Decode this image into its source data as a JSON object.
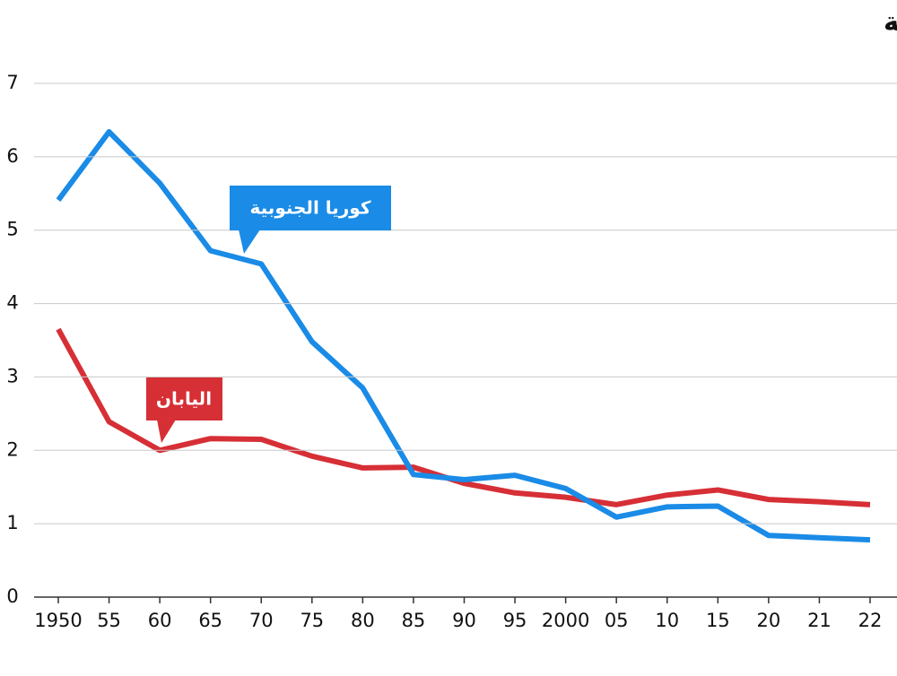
{
  "chart_data": {
    "type": "line",
    "title": "إجمالي معدل المواليد في اليابان وكوريا الجنوبية",
    "categories": [
      "1950",
      "55",
      "60",
      "65",
      "70",
      "75",
      "80",
      "85",
      "90",
      "95",
      "2000",
      "05",
      "10",
      "15",
      "20",
      "21",
      "22"
    ],
    "series": [
      {
        "name": "كوريا الجنوبية",
        "color": "#1a8be6",
        "values": [
          5.41,
          6.34,
          5.64,
          4.72,
          4.54,
          3.48,
          2.85,
          1.67,
          1.6,
          1.66,
          1.48,
          1.09,
          1.23,
          1.24,
          0.84,
          0.81,
          0.78
        ]
      },
      {
        "name": "اليابان",
        "color": "#d62f36",
        "values": [
          3.65,
          2.39,
          2.0,
          2.16,
          2.15,
          1.92,
          1.76,
          1.77,
          1.55,
          1.42,
          1.36,
          1.26,
          1.39,
          1.46,
          1.33,
          1.3,
          1.26
        ]
      }
    ],
    "ylim": [
      0,
      7
    ],
    "yticks": [
      0,
      1,
      2,
      3,
      4,
      5,
      6,
      7
    ],
    "grid": true
  }
}
